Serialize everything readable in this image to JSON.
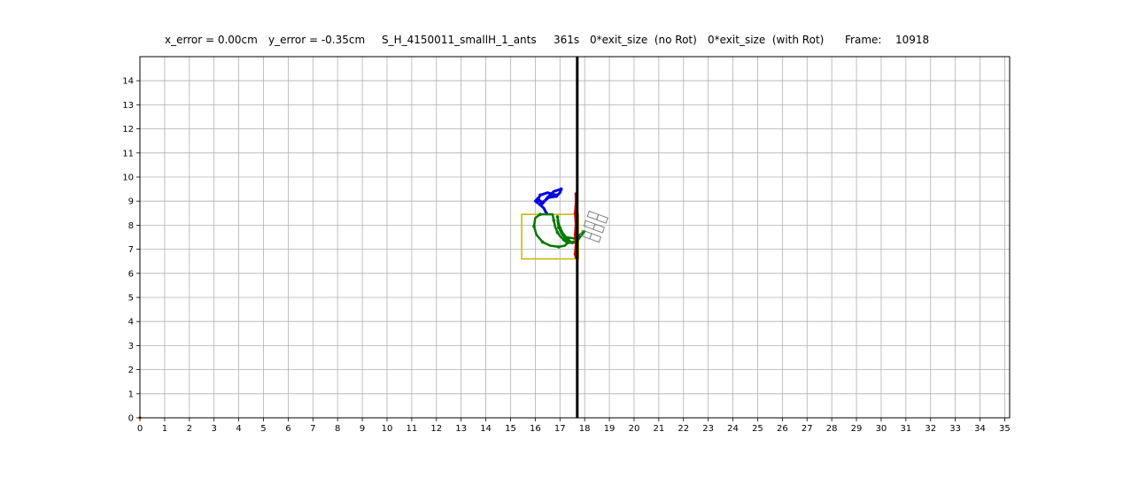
{
  "header": {
    "x_error": "x_error = 0.00cm",
    "y_error": "y_error = -0.35cm",
    "experiment": "S_H_4150011_smallH_1_ants",
    "time": "361s",
    "exit_no_rot": "0*exit_size  (no Rot)",
    "exit_with_rot": "0*exit_size  (with Rot)",
    "frame_label": "Frame:",
    "frame_value": "10918"
  },
  "chart_data": {
    "type": "line",
    "title": "",
    "xlabel": "",
    "ylabel": "",
    "xlim": [
      0,
      35.2
    ],
    "ylim": [
      0,
      15
    ],
    "grid": true,
    "x_ticks": [
      0,
      1,
      2,
      3,
      4,
      5,
      6,
      7,
      8,
      9,
      10,
      11,
      12,
      13,
      14,
      15,
      16,
      17,
      18,
      19,
      20,
      21,
      22,
      23,
      24,
      25,
      26,
      27,
      28,
      29,
      30,
      31,
      32,
      33,
      34,
      35
    ],
    "y_ticks": [
      0,
      1,
      2,
      3,
      4,
      5,
      6,
      7,
      8,
      9,
      10,
      11,
      12,
      13,
      14
    ],
    "colors": {
      "grid": "#b0b0b0",
      "wall": "#000000",
      "blue_trail": "#0000e0",
      "green_trail": "#007a00",
      "box": "#c8b400",
      "red": "#c80000",
      "gray_shape": "#808080"
    },
    "series": [
      {
        "values": [
          [
            16.85,
            9.25
          ],
          [
            16.5,
            9.35
          ],
          [
            16.2,
            9.25
          ],
          [
            16.1,
            9.05
          ],
          [
            16.3,
            8.95
          ],
          [
            16.55,
            9.15
          ],
          [
            16.85,
            9.2
          ],
          [
            17.0,
            9.35
          ],
          [
            17.05,
            9.5
          ],
          [
            16.75,
            9.4
          ],
          [
            16.5,
            9.15
          ],
          [
            16.3,
            8.9
          ],
          [
            16.1,
            9.1
          ],
          [
            16.0,
            9.0
          ],
          [
            16.2,
            8.85
          ],
          [
            16.35,
            8.7
          ],
          [
            16.45,
            8.5
          ]
        ]
      },
      {
        "values": [
          [
            17.55,
            7.3
          ],
          [
            17.3,
            7.25
          ],
          [
            17.15,
            7.4
          ],
          [
            17.0,
            7.55
          ],
          [
            16.9,
            7.7
          ],
          [
            16.8,
            7.95
          ],
          [
            16.75,
            8.2
          ],
          [
            16.7,
            8.45
          ],
          [
            16.2,
            8.45
          ],
          [
            16.0,
            8.3
          ],
          [
            15.95,
            7.95
          ],
          [
            16.05,
            7.6
          ],
          [
            16.3,
            7.3
          ],
          [
            16.6,
            7.15
          ],
          [
            16.95,
            7.1
          ],
          [
            17.2,
            7.15
          ],
          [
            17.35,
            7.3
          ],
          [
            17.1,
            7.6
          ],
          [
            16.95,
            7.9
          ],
          [
            16.9,
            8.2
          ],
          [
            17.0,
            7.9
          ],
          [
            17.15,
            7.6
          ],
          [
            17.3,
            7.45
          ],
          [
            17.5,
            7.25
          ],
          [
            17.7,
            7.35
          ],
          [
            18.0,
            7.75
          ],
          [
            17.6,
            7.45
          ],
          [
            17.25,
            7.5
          ],
          [
            17.05,
            7.75
          ],
          [
            16.95,
            8.05
          ],
          [
            16.9,
            8.35
          ]
        ]
      },
      {
        "values": [
          [
            17.65,
            9.3
          ],
          [
            17.65,
            8.9
          ],
          [
            17.62,
            8.5
          ],
          [
            17.65,
            8.05
          ],
          [
            17.62,
            7.6
          ],
          [
            17.65,
            7.2
          ],
          [
            17.62,
            6.8
          ],
          [
            17.65,
            6.65
          ]
        ]
      }
    ],
    "wall_x": 17.7,
    "box": {
      "x0": 15.45,
      "y0": 6.6,
      "x1": 17.75,
      "y1": 8.45
    },
    "gray_shape": {
      "cx": 18.35,
      "cy": 7.85,
      "w": 0.8,
      "h": 0.42,
      "rows": 3,
      "cols": 2,
      "angle_deg": -20
    }
  }
}
